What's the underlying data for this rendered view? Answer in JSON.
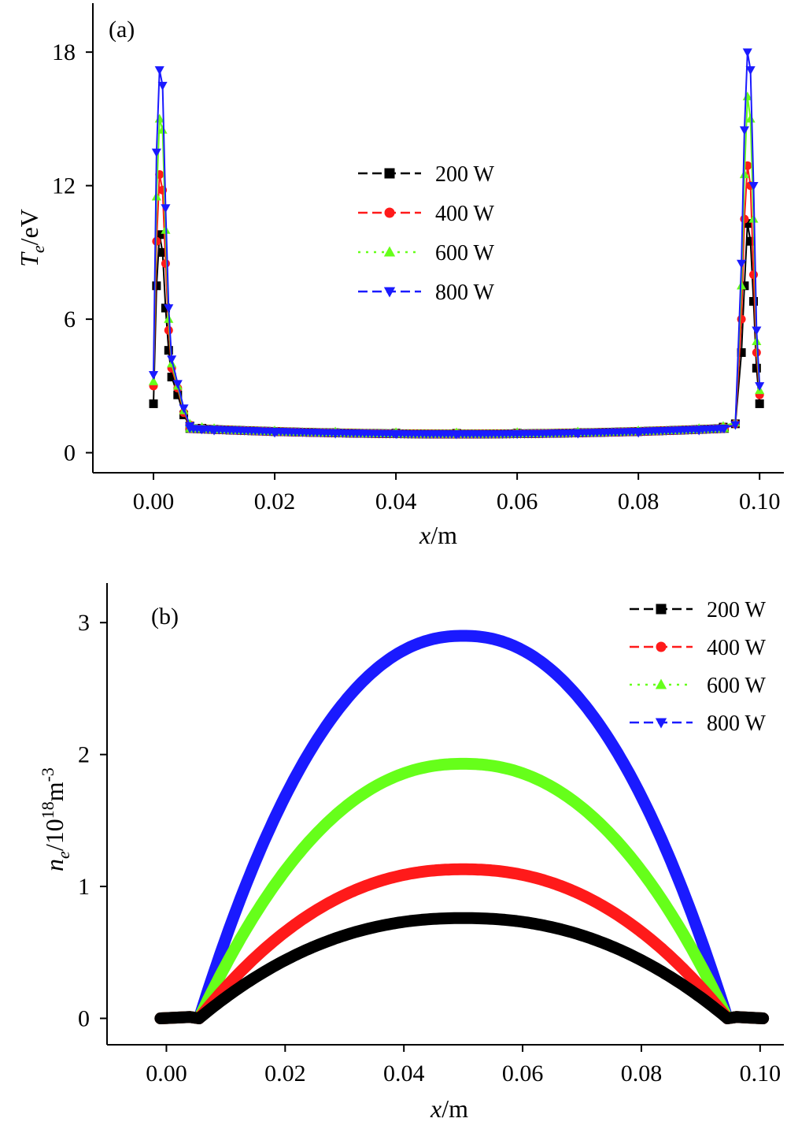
{
  "chart_data": [
    {
      "panel": "(a)",
      "type": "line",
      "xlabel_italic": "x",
      "xlabel_unit": "/m",
      "ylabel_symbol": "T",
      "ylabel_sub": "e",
      "ylabel_unit": "/eV",
      "xlim": [
        -0.01,
        0.104
      ],
      "ylim": [
        -0.9,
        20.2
      ],
      "xticks": [
        "0.00",
        "0.02",
        "0.04",
        "0.06",
        "0.08",
        "0.10"
      ],
      "xtick_values": [
        0,
        0.02,
        0.04,
        0.06,
        0.08,
        0.1
      ],
      "yticks": [
        "0",
        "6",
        "12",
        "18"
      ],
      "ytick_values": [
        0,
        6,
        12,
        18
      ],
      "grid": false,
      "legend_position": "center",
      "series": [
        {
          "name": "200 W",
          "color": "#000000",
          "marker": "square",
          "dash": "long",
          "x": [
            0,
            0.0005,
            0.001,
            0.0015,
            0.002,
            0.0025,
            0.003,
            0.004,
            0.005,
            0.006,
            0.008,
            0.01,
            0.02,
            0.03,
            0.04,
            0.05,
            0.06,
            0.07,
            0.08,
            0.09,
            0.094,
            0.096,
            0.097,
            0.0975,
            0.098,
            0.0985,
            0.099,
            0.0995,
            0.1
          ],
          "y": [
            2.2,
            7.5,
            9.8,
            9.0,
            6.5,
            4.6,
            3.4,
            2.6,
            1.7,
            1.2,
            1.1,
            1.05,
            0.95,
            0.9,
            0.88,
            0.87,
            0.88,
            0.9,
            0.95,
            1.05,
            1.15,
            1.3,
            4.5,
            7.5,
            10.3,
            9.5,
            6.8,
            3.8,
            2.2
          ]
        },
        {
          "name": "400 W",
          "color": "#ff1a1a",
          "marker": "circle",
          "dash": "long",
          "x": [
            0,
            0.0005,
            0.001,
            0.0015,
            0.002,
            0.0025,
            0.003,
            0.004,
            0.005,
            0.006,
            0.008,
            0.01,
            0.02,
            0.03,
            0.04,
            0.05,
            0.06,
            0.07,
            0.08,
            0.09,
            0.094,
            0.096,
            0.097,
            0.0975,
            0.098,
            0.0985,
            0.099,
            0.0995,
            0.1
          ],
          "y": [
            3.0,
            9.5,
            12.5,
            11.8,
            8.5,
            5.5,
            3.8,
            2.9,
            1.8,
            1.25,
            1.1,
            1.05,
            0.95,
            0.9,
            0.88,
            0.87,
            0.88,
            0.9,
            0.95,
            1.05,
            1.15,
            1.3,
            6.0,
            10.5,
            12.9,
            12.0,
            8.0,
            4.5,
            2.6
          ]
        },
        {
          "name": "600 W",
          "color": "#66ff1a",
          "marker": "triangle-up",
          "dash": "short",
          "x": [
            0,
            0.0005,
            0.001,
            0.0015,
            0.002,
            0.0025,
            0.003,
            0.004,
            0.005,
            0.006,
            0.008,
            0.01,
            0.02,
            0.03,
            0.04,
            0.05,
            0.06,
            0.07,
            0.08,
            0.09,
            0.094,
            0.096,
            0.097,
            0.0975,
            0.098,
            0.0985,
            0.099,
            0.0995,
            0.1
          ],
          "y": [
            3.2,
            11.5,
            15.0,
            14.5,
            10.0,
            6.0,
            4.0,
            3.0,
            1.9,
            1.3,
            1.15,
            1.1,
            1.0,
            0.95,
            0.92,
            0.91,
            0.92,
            0.95,
            1.0,
            1.1,
            1.2,
            1.35,
            7.5,
            12.5,
            16.0,
            15.0,
            10.5,
            5.0,
            2.8
          ]
        },
        {
          "name": "800 W",
          "color": "#1a1aff",
          "marker": "triangle-down",
          "dash": "long",
          "x": [
            0,
            0.0005,
            0.001,
            0.0015,
            0.002,
            0.0025,
            0.003,
            0.004,
            0.005,
            0.006,
            0.008,
            0.01,
            0.02,
            0.03,
            0.04,
            0.05,
            0.06,
            0.07,
            0.08,
            0.09,
            0.094,
            0.096,
            0.097,
            0.0975,
            0.098,
            0.0985,
            0.099,
            0.0995,
            0.1
          ],
          "y": [
            3.5,
            13.5,
            17.2,
            16.5,
            11.0,
            6.5,
            4.2,
            3.1,
            2.0,
            1.2,
            1.05,
            1.0,
            0.9,
            0.86,
            0.84,
            0.83,
            0.84,
            0.86,
            0.9,
            1.0,
            1.1,
            1.25,
            8.5,
            14.5,
            18.0,
            17.2,
            12.0,
            5.5,
            3.0
          ]
        }
      ]
    },
    {
      "panel": "(b)",
      "type": "line",
      "xlabel_italic": "x",
      "xlabel_unit": "/m",
      "ylabel_symbol": "n",
      "ylabel_sub": "e",
      "ylabel_unit": "/10",
      "ylabel_exp": "18",
      "ylabel_unit2": "m",
      "ylabel_exp2": "-3",
      "xlim": [
        -0.01,
        0.104
      ],
      "ylim": [
        -0.2,
        3.3
      ],
      "xticks": [
        "0.00",
        "0.02",
        "0.04",
        "0.06",
        "0.08",
        "0.10"
      ],
      "xtick_values": [
        0,
        0.02,
        0.04,
        0.06,
        0.08,
        0.1
      ],
      "yticks": [
        "0",
        "1",
        "2",
        "3"
      ],
      "ytick_values": [
        0,
        1,
        2,
        3
      ],
      "grid": false,
      "legend_position": "top-right",
      "series": [
        {
          "name": "200 W",
          "color": "#000000",
          "marker": "square",
          "dash": "long",
          "peak": 0.76
        },
        {
          "name": "400 W",
          "color": "#ff1a1a",
          "marker": "circle",
          "dash": "long",
          "peak": 1.13
        },
        {
          "name": "600 W",
          "color": "#66ff1a",
          "marker": "triangle-up",
          "dash": "short",
          "peak": 1.93
        },
        {
          "name": "800 W",
          "color": "#1a1aff",
          "marker": "triangle-down",
          "dash": "long",
          "peak": 2.9
        }
      ]
    }
  ]
}
